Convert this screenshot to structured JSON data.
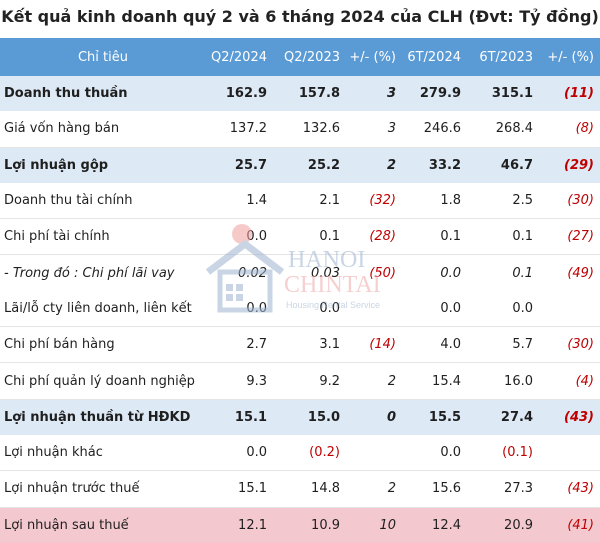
{
  "title": "Kết quả kinh doanh quý 2 và 6 tháng 2024 của CLH (Đvt: Tỷ đồng)",
  "headers": [
    "Chỉ tiêu",
    "Q2/2024",
    "Q2/2023",
    "+/- (%)",
    "6T/2024",
    "6T/2023",
    "+/- (%)"
  ],
  "rows": [
    {
      "label": "Doanh thu thuần",
      "q2_2024": "162.9",
      "q2_2023": "157.8",
      "chg_q": "3",
      "h1_2024": "279.9",
      "h1_2023": "315.1",
      "chg_h": "(11)"
    },
    {
      "label": "Giá vốn hàng bán",
      "q2_2024": "137.2",
      "q2_2023": "132.6",
      "chg_q": "3",
      "h1_2024": "246.6",
      "h1_2023": "268.4",
      "chg_h": "(8)"
    },
    {
      "label": "Lợi nhuận gộp",
      "q2_2024": "25.7",
      "q2_2023": "25.2",
      "chg_q": "2",
      "h1_2024": "33.2",
      "h1_2023": "46.7",
      "chg_h": "(29)"
    },
    {
      "label": "Doanh thu tài chính",
      "q2_2024": "1.4",
      "q2_2023": "2.1",
      "chg_q": "(32)",
      "h1_2024": "1.8",
      "h1_2023": "2.5",
      "chg_h": "(30)"
    },
    {
      "label": "Chi phí tài chính",
      "q2_2024": "0.0",
      "q2_2023": "0.1",
      "chg_q": "(28)",
      "h1_2024": "0.1",
      "h1_2023": "0.1",
      "chg_h": "(27)"
    },
    {
      "label": "- Trong đó : Chi phí lãi vay",
      "q2_2024": "0.02",
      "q2_2023": "0.03",
      "chg_q": "(50)",
      "h1_2024": "0.0",
      "h1_2023": "0.1",
      "chg_h": "(49)"
    },
    {
      "label": "Lãi/lỗ cty liên doanh, liên kết",
      "q2_2024": "0.0",
      "q2_2023": "0.0",
      "chg_q": "",
      "h1_2024": "0.0",
      "h1_2023": "0.0",
      "chg_h": ""
    },
    {
      "label": "Chi phí bán hàng",
      "q2_2024": "2.7",
      "q2_2023": "3.1",
      "chg_q": "(14)",
      "h1_2024": "4.0",
      "h1_2023": "5.7",
      "chg_h": "(30)"
    },
    {
      "label": "Chi phí quản lý doanh nghiệp",
      "q2_2024": "9.3",
      "q2_2023": "9.2",
      "chg_q": "2",
      "h1_2024": "15.4",
      "h1_2023": "16.0",
      "chg_h": "(4)"
    },
    {
      "label": "Lợi nhuận thuần từ HĐKD",
      "q2_2024": "15.1",
      "q2_2023": "15.0",
      "chg_q": "0",
      "h1_2024": "15.5",
      "h1_2023": "27.4",
      "chg_h": "(43)"
    },
    {
      "label": "Lợi nhuận khác",
      "q2_2024": "0.0",
      "q2_2023": "(0.2)",
      "chg_q": "",
      "h1_2024": "0.0",
      "h1_2023": "(0.1)",
      "chg_h": ""
    },
    {
      "label": "Lợi nhuận trước thuế",
      "q2_2024": "15.1",
      "q2_2023": "14.8",
      "chg_q": "2",
      "h1_2024": "15.6",
      "h1_2023": "27.3",
      "chg_h": "(43)"
    },
    {
      "label": "Lợi nhuận sau thuế",
      "q2_2024": "12.1",
      "q2_2023": "10.9",
      "chg_q": "10",
      "h1_2024": "12.4",
      "h1_2023": "20.9",
      "chg_h": "(41)"
    }
  ],
  "watermark": {
    "line1": "HANOI",
    "line2": "CHINTAI",
    "tagline": "Housing Rental Service"
  },
  "colors": {
    "header_bg": "#5b9bd5",
    "highlight_bg": "#dde9f5",
    "final_bg": "#f3c9cf",
    "negative": "#c00000"
  }
}
